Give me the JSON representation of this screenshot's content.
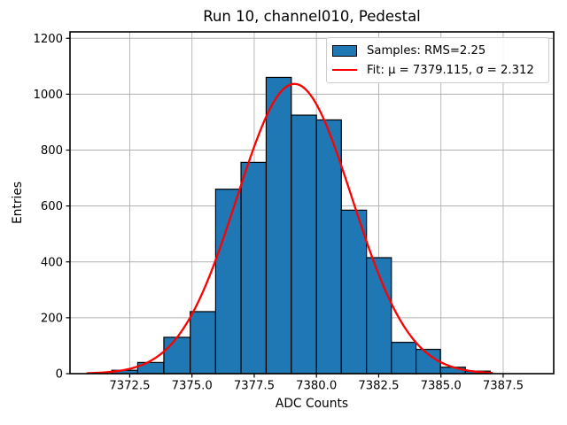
{
  "chart_data": {
    "type": "bar",
    "subtype": "histogram-with-gaussian-fit",
    "title": "Run 10, channel010, Pedestal",
    "xlabel": "ADC Counts",
    "ylabel": "Entries",
    "bin_edges": [
      7371.78,
      7372.82,
      7373.87,
      7374.93,
      7375.95,
      7376.97,
      7377.98,
      7378.99,
      7380.0,
      7381.0,
      7382.01,
      7383.01,
      7384.0,
      7384.98,
      7385.98,
      7386.98
    ],
    "counts": [
      12,
      40,
      130,
      222,
      660,
      756,
      1060,
      925,
      908,
      585,
      415,
      112,
      87,
      23,
      9
    ],
    "fit": {
      "mu": 7379.115,
      "sigma": 2.312,
      "peak": 1037,
      "curve_x_start": 7370.8,
      "curve_x_end": 7387.05
    },
    "rms": 2.25,
    "x_ticks": [
      7372.5,
      7375.0,
      7377.5,
      7380.0,
      7382.5,
      7385.0,
      7387.5
    ],
    "x_tick_labels": [
      "7372.5",
      "7375.0",
      "7377.5",
      "7380.0",
      "7382.5",
      "7385.0",
      "7387.5"
    ],
    "y_ticks": [
      0,
      200,
      400,
      600,
      800,
      1000,
      1200
    ],
    "y_tick_labels": [
      "0",
      "200",
      "400",
      "600",
      "800",
      "1000",
      "1200"
    ],
    "xlim": [
      7370.1,
      7389.53
    ],
    "ylim": [
      0,
      1223
    ],
    "grid": true,
    "legend": {
      "position": "upper right",
      "samples": "Samples: RMS=2.25",
      "fit": "Fit: μ = 7379.115, σ = 2.312"
    },
    "colors": {
      "bar_fill": "#1f77b4",
      "bar_edge": "#000000",
      "fit_line": "#ff0000",
      "grid": "#b0b0b0",
      "axes": "#000000",
      "legend_border": "#cccccc",
      "text": "#000000"
    }
  }
}
